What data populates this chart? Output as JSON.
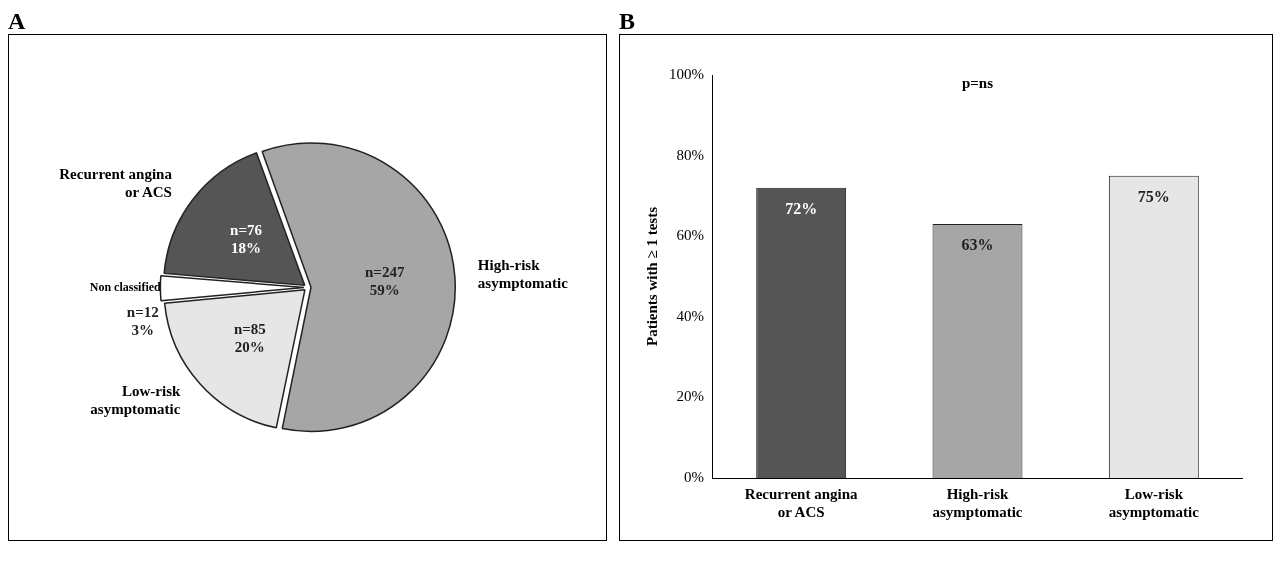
{
  "chart_data": [
    {
      "type": "pie",
      "title": "A",
      "categories": [
        "High-risk asymptomatic",
        "Low-risk asymptomatic",
        "Non classified",
        "Recurrent angina or ACS"
      ],
      "values": [
        247,
        85,
        12,
        76
      ],
      "colors": [
        "#a6a6a6",
        "#e6e6e6",
        "#ffffff",
        "#555555"
      ],
      "value_labels": [
        "n=247\n59%",
        "n=85\n20%",
        "n=12\n3%",
        "n=76\n18%"
      ],
      "legend": false
    },
    {
      "type": "bar",
      "title": "B",
      "categories": [
        "Recurrent angina or ACS",
        "High-risk asymptomatic",
        "Low-risk asymptomatic"
      ],
      "values": [
        72,
        63,
        75
      ],
      "colors": [
        "#555555",
        "#a6a6a6",
        "#e6e6e6"
      ],
      "value_labels": [
        "72%",
        "63%",
        "75%"
      ],
      "ylabel": "Patients with ≥ 1 tests",
      "ylim": [
        0,
        100
      ],
      "yticks": [
        {
          "value": 0,
          "label": "0%"
        },
        {
          "value": 20,
          "label": "20%"
        },
        {
          "value": 40,
          "label": "40%"
        },
        {
          "value": 60,
          "label": "60%"
        },
        {
          "value": 80,
          "label": "80%"
        },
        {
          "value": 100,
          "label": "100%"
        }
      ],
      "annotations": [
        "p=ns"
      ],
      "grid": false,
      "legend": false
    }
  ]
}
